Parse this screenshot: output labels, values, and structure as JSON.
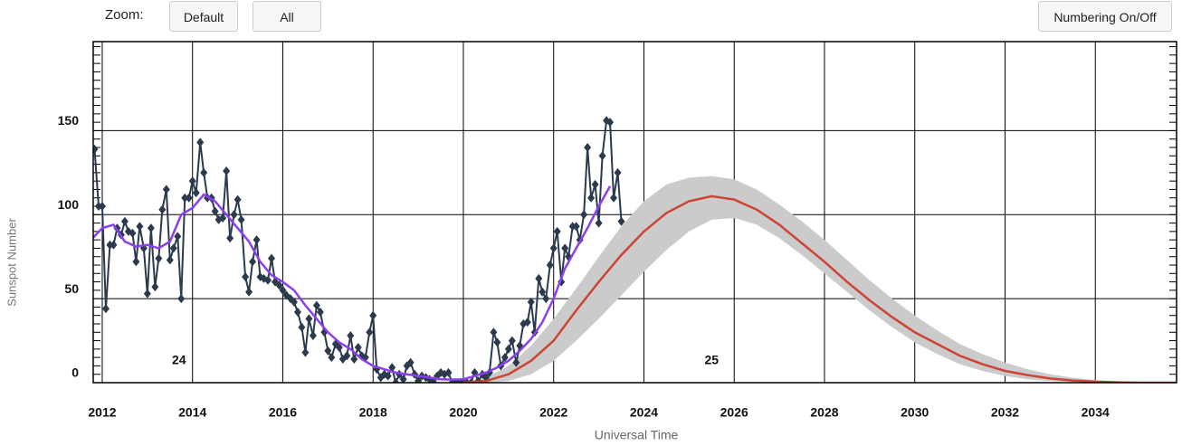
{
  "ui": {
    "zoom_label": "Zoom:",
    "buttons": [
      "Default",
      "All"
    ],
    "numbering_button": "Numbering On/Off"
  },
  "chart_data": {
    "type": "line",
    "xlabel": "Universal Time",
    "ylabel": "Sunspot Number",
    "xlim": [
      2011.8,
      2035.8
    ],
    "ylim": [
      0,
      203
    ],
    "xticks": [
      2012,
      2014,
      2016,
      2018,
      2020,
      2022,
      2024,
      2026,
      2028,
      2030,
      2032,
      2034
    ],
    "yticks": [
      0,
      50,
      100,
      150
    ],
    "grid": true,
    "annotations": [
      {
        "text": "24",
        "x": 2013.7,
        "y": 13
      },
      {
        "text": "25",
        "x": 2025.5,
        "y": 13
      }
    ],
    "band": {
      "color": "#cbcbcb",
      "x": [
        2020,
        2020.5,
        2021,
        2021.5,
        2022,
        2022.5,
        2023,
        2023.5,
        2024,
        2024.5,
        2025,
        2025.5,
        2026,
        2026.5,
        2027,
        2027.5,
        2028,
        2028.5,
        2029,
        2029.5,
        2030,
        2030.5,
        2031,
        2031.5,
        2032,
        2032.5,
        2033,
        2033.5,
        2034,
        2034.5,
        2035,
        2035.8
      ],
      "upper": [
        0,
        3,
        10,
        22,
        38,
        56,
        75,
        93,
        108,
        118,
        122,
        123,
        121,
        115,
        106,
        96,
        85,
        73,
        61,
        50,
        40,
        31,
        23,
        17,
        12,
        8,
        5,
        3,
        1.5,
        0.8,
        0.4,
        0
      ],
      "lower": [
        0,
        0,
        1,
        5,
        13,
        25,
        38,
        52,
        66,
        79,
        90,
        97,
        98,
        94,
        86,
        76,
        65,
        54,
        43,
        33,
        24,
        17,
        11,
        7,
        4,
        2,
        1,
        0.5,
        0.2,
        0,
        0,
        0
      ]
    },
    "series": [
      {
        "color": "#2b3a4c",
        "markers": true,
        "x": [
          2011.83,
          2011.92,
          2012.0,
          2012.08,
          2012.17,
          2012.25,
          2012.33,
          2012.42,
          2012.5,
          2012.58,
          2012.67,
          2012.75,
          2012.83,
          2012.92,
          2013.0,
          2013.08,
          2013.17,
          2013.25,
          2013.33,
          2013.42,
          2013.5,
          2013.58,
          2013.67,
          2013.75,
          2013.83,
          2013.92,
          2014.0,
          2014.08,
          2014.17,
          2014.25,
          2014.33,
          2014.42,
          2014.5,
          2014.58,
          2014.67,
          2014.75,
          2014.83,
          2014.92,
          2015.0,
          2015.08,
          2015.17,
          2015.25,
          2015.33,
          2015.42,
          2015.5,
          2015.58,
          2015.67,
          2015.75,
          2015.83,
          2015.92,
          2016.0,
          2016.08,
          2016.17,
          2016.25,
          2016.33,
          2016.42,
          2016.5,
          2016.58,
          2016.67,
          2016.75,
          2016.83,
          2016.92,
          2017.0,
          2017.08,
          2017.17,
          2017.25,
          2017.33,
          2017.42,
          2017.5,
          2017.58,
          2017.67,
          2017.75,
          2017.83,
          2017.92,
          2018.0,
          2018.08,
          2018.17,
          2018.25,
          2018.33,
          2018.42,
          2018.5,
          2018.58,
          2018.67,
          2018.75,
          2018.83,
          2018.92,
          2019.0,
          2019.08,
          2019.17,
          2019.25,
          2019.33,
          2019.42,
          2019.5,
          2019.58,
          2019.67,
          2019.75,
          2019.83,
          2019.92,
          2020.0,
          2020.08,
          2020.17,
          2020.25,
          2020.33,
          2020.42,
          2020.5,
          2020.58,
          2020.67,
          2020.75,
          2020.83,
          2020.92,
          2021.0,
          2021.08,
          2021.17,
          2021.25,
          2021.33,
          2021.42,
          2021.5,
          2021.58,
          2021.67,
          2021.75,
          2021.83,
          2021.92,
          2022.0,
          2022.08,
          2022.17,
          2022.25,
          2022.33,
          2022.42,
          2022.5,
          2022.58,
          2022.67,
          2022.75,
          2022.83,
          2022.92,
          2023.0,
          2023.08,
          2023.17,
          2023.25,
          2023.33,
          2023.42,
          2023.5
        ],
        "values": [
          139,
          105,
          105,
          44,
          82,
          82,
          92,
          88,
          96,
          90,
          89,
          72,
          93,
          80,
          53,
          92,
          57,
          74,
          103,
          115,
          73,
          80,
          87,
          50,
          110,
          110,
          120,
          113,
          143,
          125,
          110,
          110,
          102,
          97,
          98,
          126,
          86,
          100,
          109,
          97,
          63,
          54,
          72,
          85,
          63,
          62,
          61,
          74,
          60,
          58,
          55,
          52,
          50,
          48,
          42,
          33,
          18,
          38,
          28,
          46,
          42,
          30,
          19,
          15,
          23,
          21,
          14,
          16,
          28,
          14,
          21,
          16,
          15,
          30,
          40,
          8,
          3,
          5,
          4,
          9,
          0,
          5,
          2,
          10,
          12,
          5,
          1,
          4,
          3,
          2,
          1,
          4,
          6,
          5,
          6,
          0,
          0,
          0,
          0,
          0,
          0,
          6,
          1,
          5,
          3,
          6,
          30,
          24,
          10,
          15,
          20,
          25,
          12,
          22,
          35,
          36,
          48,
          30,
          62,
          54,
          50,
          70,
          80,
          90,
          60,
          80,
          75,
          93,
          93,
          85,
          100,
          140,
          110,
          118,
          95,
          135,
          156,
          155,
          110,
          125,
          96
        ]
      },
      {
        "color": "#8a3ff0",
        "markers": false,
        "x": [
          2011.75,
          2012,
          2012.25,
          2012.5,
          2012.75,
          2013,
          2013.25,
          2013.5,
          2013.75,
          2014,
          2014.25,
          2014.5,
          2014.75,
          2015,
          2015.25,
          2015.5,
          2015.75,
          2016,
          2016.25,
          2016.5,
          2016.75,
          2017,
          2017.25,
          2017.5,
          2017.75,
          2018,
          2018.25,
          2018.5,
          2018.75,
          2019,
          2019.25,
          2019.5,
          2019.75,
          2020,
          2020.25,
          2020.5,
          2020.75,
          2021,
          2021.25,
          2021.5,
          2021.75,
          2022,
          2022.25,
          2022.5,
          2022.75,
          2023,
          2023.25
        ],
        "values": [
          85,
          92,
          94,
          84,
          81,
          82,
          80,
          84,
          100,
          104,
          112,
          108,
          100,
          92,
          84,
          72,
          64,
          60,
          55,
          46,
          38,
          30,
          24,
          20,
          14,
          10,
          8,
          6,
          5,
          4,
          3,
          2,
          1.8,
          2,
          4,
          6,
          9,
          13,
          19,
          26,
          36,
          50,
          68,
          80,
          92,
          105,
          117
        ]
      },
      {
        "color": "#cc4433",
        "markers": false,
        "x": [
          2020,
          2020.5,
          2021,
          2021.5,
          2022,
          2022.5,
          2023,
          2023.5,
          2024,
          2024.5,
          2025,
          2025.5,
          2026,
          2026.5,
          2027,
          2027.5,
          2028,
          2028.5,
          2029,
          2029.5,
          2030,
          2030.5,
          2031,
          2031.5,
          2032,
          2032.5,
          2033,
          2033.5,
          2034,
          2034.5,
          2035,
          2035.8
        ],
        "values": [
          0,
          1,
          5,
          13,
          25,
          43,
          60,
          76,
          90,
          101,
          108,
          111,
          109,
          103,
          94,
          83,
          72,
          60,
          49,
          39,
          30,
          23,
          16,
          11,
          7,
          4.5,
          2.5,
          1.3,
          0.6,
          0.2,
          0,
          0
        ]
      }
    ]
  }
}
